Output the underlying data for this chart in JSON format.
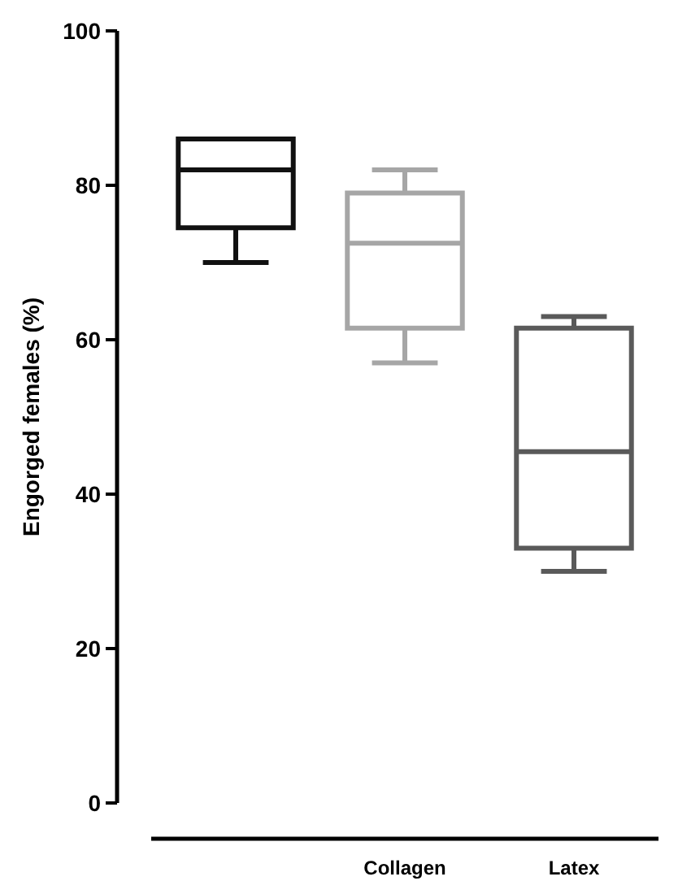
{
  "chart_data": {
    "type": "box",
    "ylabel": "Engorged females (%)",
    "categories": [
      null,
      "Collagen",
      "Latex"
    ],
    "colors": [
      "#111111",
      "#a6a6a6",
      "#5a5a5a"
    ],
    "boxes": [
      {
        "low": 70,
        "q1": 74.5,
        "median": 82,
        "q3": 86,
        "high": 86
      },
      {
        "low": 57,
        "q1": 61.5,
        "median": 72.5,
        "q3": 79,
        "high": 82
      },
      {
        "low": 30,
        "q1": 33,
        "median": 45.5,
        "q3": 61.5,
        "high": 63
      }
    ],
    "ylim": [
      0,
      100
    ],
    "yticks": [
      0,
      20,
      40,
      60,
      80,
      100
    ]
  }
}
